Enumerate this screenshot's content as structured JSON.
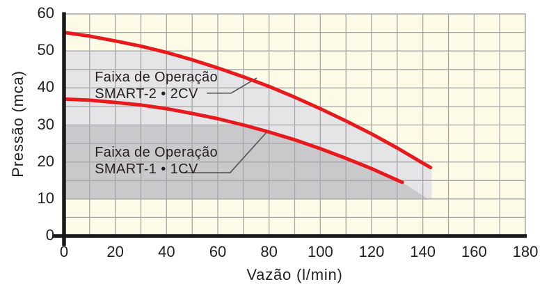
{
  "chart_data": {
    "type": "line",
    "title": "",
    "xlabel": "Vazão (l/min)",
    "ylabel": "Pressão (mca)",
    "xlim": [
      0,
      180
    ],
    "ylim": [
      0,
      60
    ],
    "x_tick_labels": [
      "0",
      "20",
      "40",
      "60",
      "80",
      "100",
      "120",
      "140",
      "160",
      "180"
    ],
    "y_tick_labels": [
      "0",
      "10",
      "20",
      "30",
      "40",
      "50",
      "60"
    ],
    "x_grid_step": 10,
    "y_grid_step": 5,
    "grid": true,
    "legend_position": "none",
    "series": [
      {
        "name": "SMART-2 2CV pump curve",
        "color": "#e8191d",
        "points": [
          [
            0,
            55
          ],
          [
            10,
            54.0
          ],
          [
            20,
            52.7
          ],
          [
            30,
            51.3
          ],
          [
            40,
            49.6
          ],
          [
            50,
            47.6
          ],
          [
            60,
            45.4
          ],
          [
            70,
            43.0
          ],
          [
            80,
            40.4
          ],
          [
            90,
            37.5
          ],
          [
            100,
            34.4
          ],
          [
            110,
            31.1
          ],
          [
            120,
            27.6
          ],
          [
            130,
            23.8
          ],
          [
            140,
            19.7
          ],
          [
            143,
            18.5
          ]
        ]
      },
      {
        "name": "SMART-1 1CV pump curve",
        "color": "#e8191d",
        "points": [
          [
            0,
            37
          ],
          [
            10,
            36.7
          ],
          [
            20,
            36.1
          ],
          [
            30,
            35.4
          ],
          [
            40,
            34.4
          ],
          [
            50,
            33.1
          ],
          [
            60,
            31.7
          ],
          [
            70,
            30.0
          ],
          [
            80,
            28.1
          ],
          [
            90,
            26.0
          ],
          [
            100,
            23.6
          ],
          [
            110,
            21.0
          ],
          [
            120,
            18.2
          ],
          [
            130,
            15.1
          ],
          [
            132,
            14.5
          ]
        ]
      }
    ],
    "regions": [
      {
        "name": "smart2-operating-range",
        "fill": "#e5e5e7",
        "polygon": [
          [
            0,
            50
          ],
          [
            37.5,
            50
          ],
          [
            40,
            49.6
          ],
          [
            50,
            47.6
          ],
          [
            60,
            45.4
          ],
          [
            70,
            43.0
          ],
          [
            80,
            40.4
          ],
          [
            90,
            37.5
          ],
          [
            100,
            34.4
          ],
          [
            110,
            31.1
          ],
          [
            120,
            27.6
          ],
          [
            130,
            23.8
          ],
          [
            140,
            19.7
          ],
          [
            143.5,
            18.4
          ],
          [
            143.5,
            10
          ],
          [
            0,
            10
          ]
        ]
      },
      {
        "name": "smart1-operating-range",
        "fill": "#c9c9cc",
        "polygon": [
          [
            0,
            30
          ],
          [
            70,
            30
          ],
          [
            80,
            28.1
          ],
          [
            90,
            26.0
          ],
          [
            100,
            23.6
          ],
          [
            110,
            21.0
          ],
          [
            120,
            18.2
          ],
          [
            130,
            15.1
          ],
          [
            132,
            14.5
          ],
          [
            142,
            10
          ],
          [
            0,
            10
          ]
        ]
      }
    ],
    "annotations": [
      {
        "line1": "Faixa de Operação",
        "line2": "SMART-2 • 2CV",
        "text_anchor": [
          12,
          45.1
        ],
        "leader": [
          [
            55.7,
            38.6
          ],
          [
            65.2,
            38.6
          ],
          [
            75.2,
            42.7
          ]
        ]
      },
      {
        "line1": "Faixa de Operação",
        "line2": "SMART-1 • 1CV",
        "text_anchor": [
          12,
          24.8
        ],
        "leader": [
          [
            47.0,
            17.1
          ],
          [
            64.8,
            17.1
          ],
          [
            79.0,
            28.0
          ]
        ]
      }
    ],
    "colors": {
      "plot_background": "#fdfbe5",
      "grid": "#a6a6a9",
      "frame": "#a6a6a9",
      "curve": "#e8191d",
      "axis": "#1a1a1a",
      "leader": "#58595b",
      "text": "#231f20",
      "region_light": "#e5e5e7",
      "region_dark": "#c9c9cc"
    }
  }
}
